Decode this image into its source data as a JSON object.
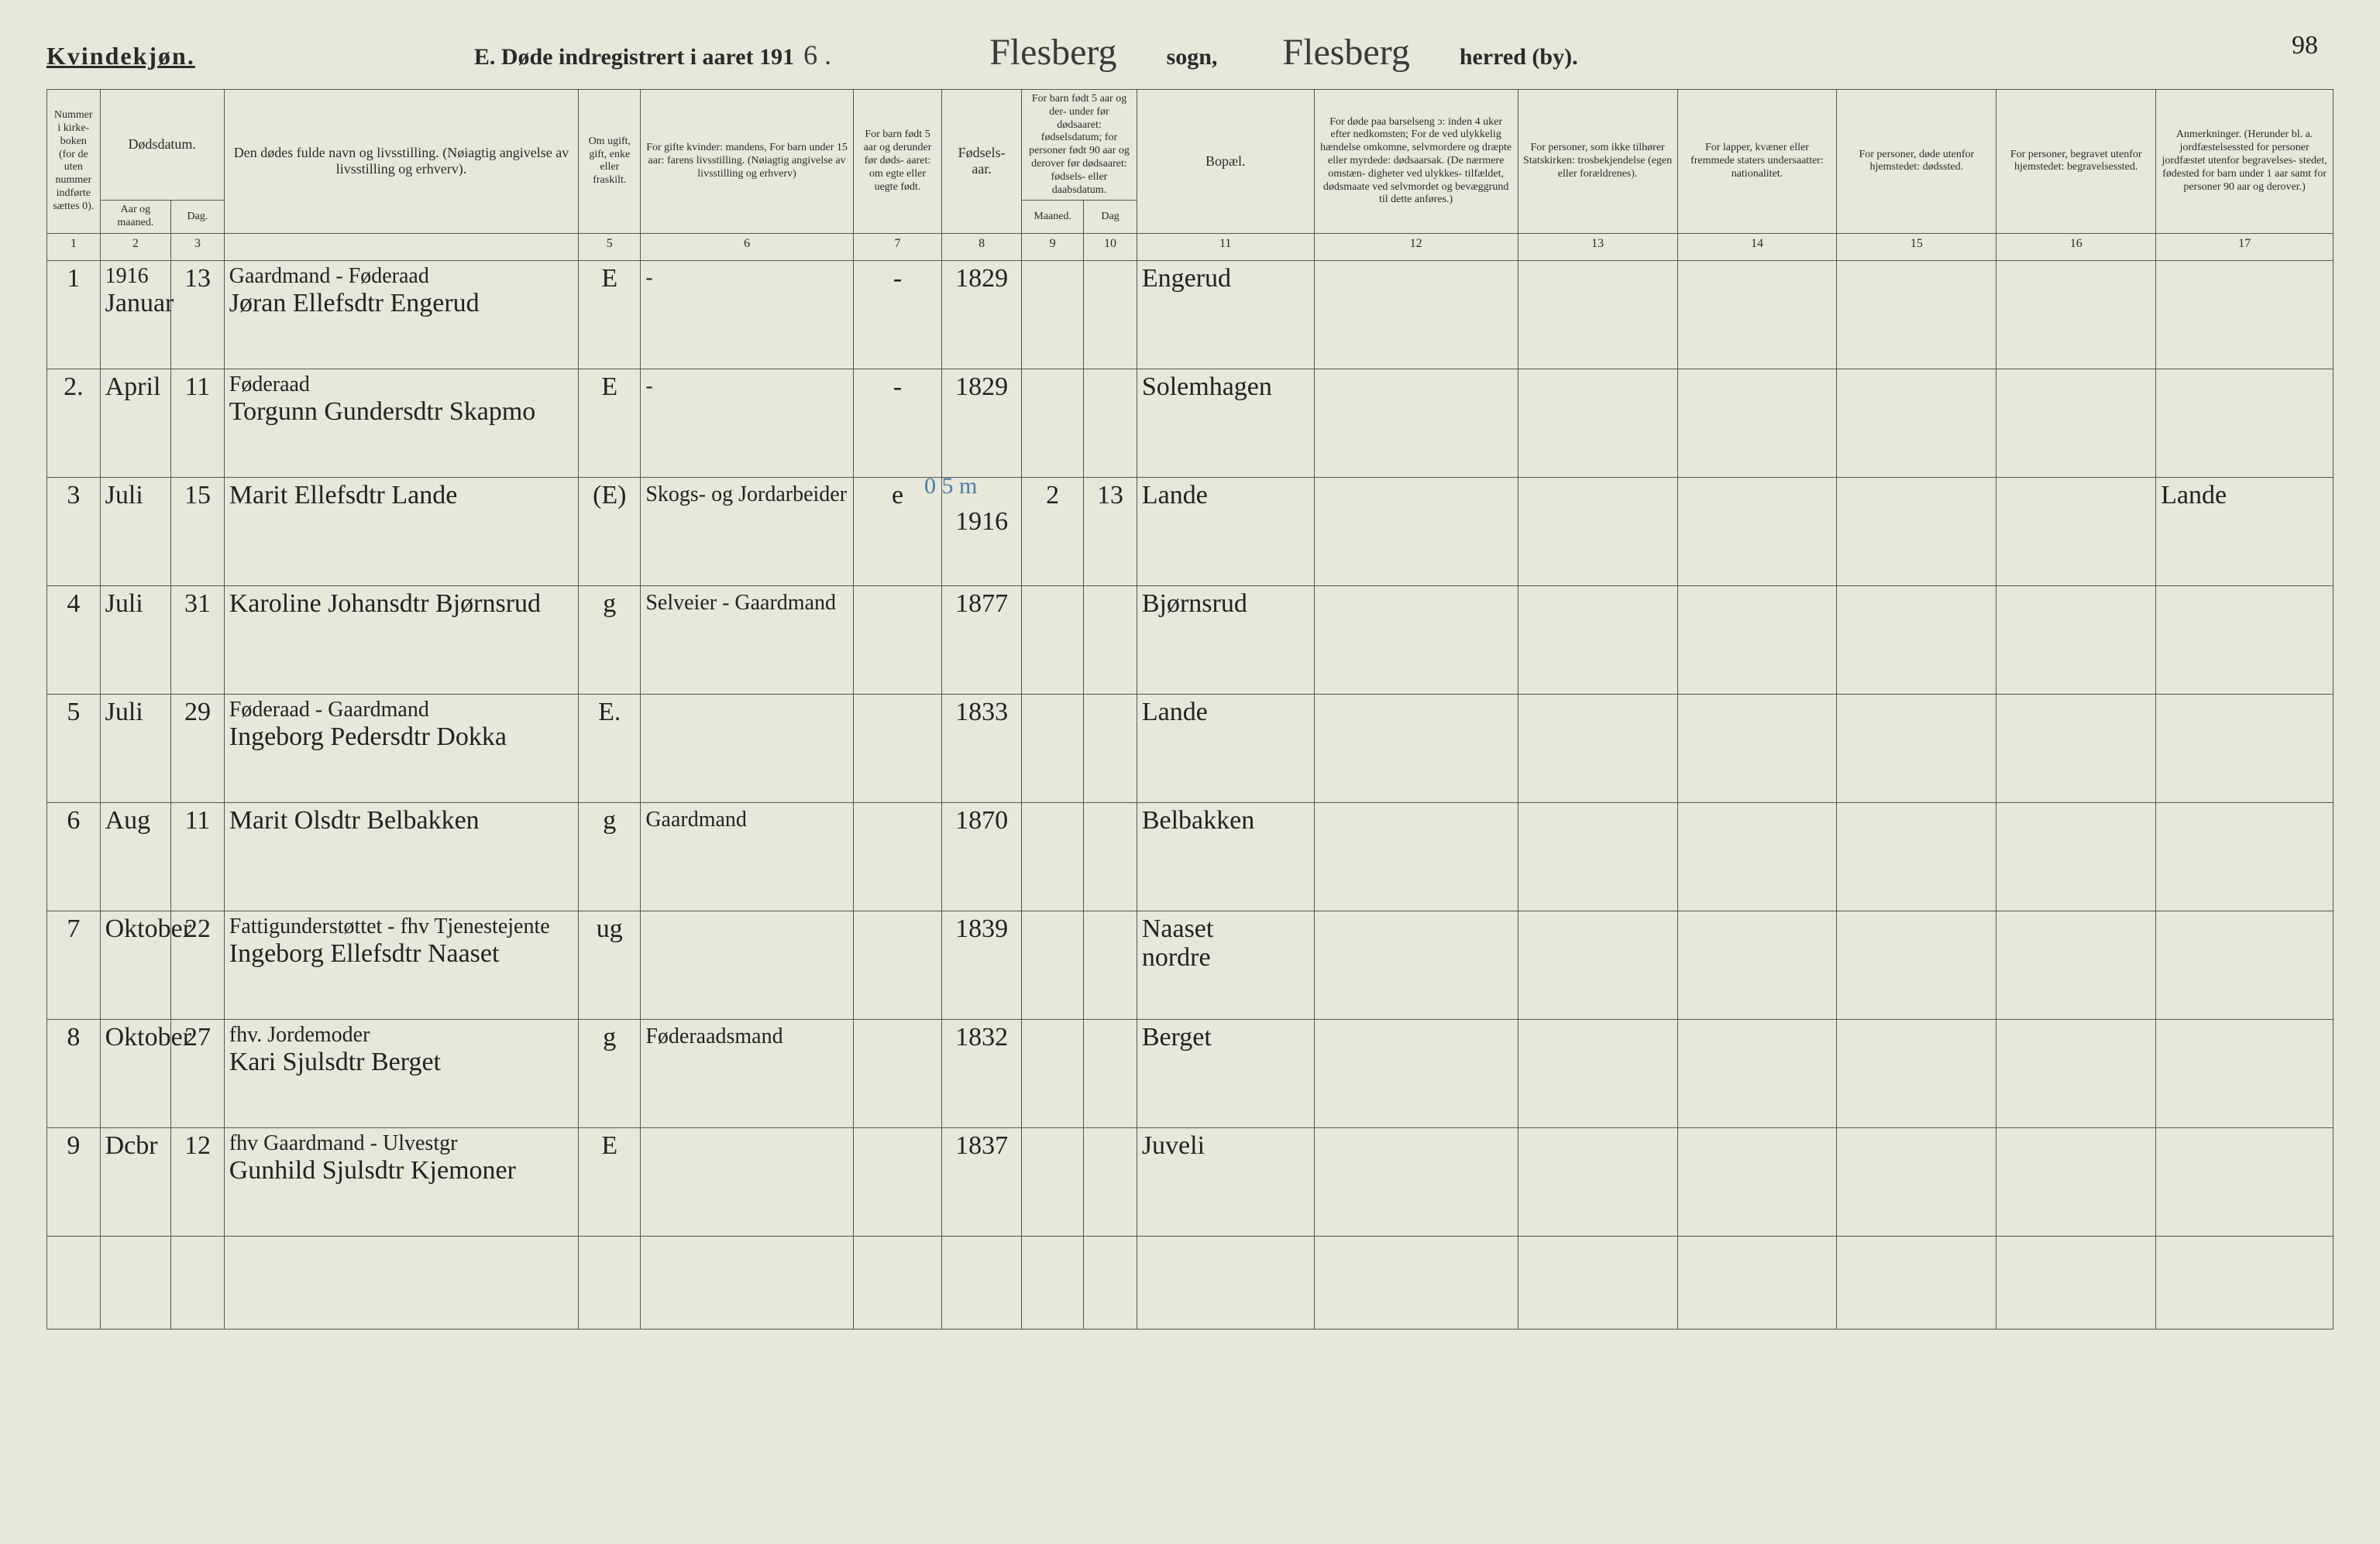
{
  "header": {
    "gender_label": "Kvindekjøn.",
    "title_prefix": "E.  Døde indregistrert i aaret 191",
    "year_suffix": "6 .",
    "parish_label": "sogn,",
    "district_label": "herred (by).",
    "parish_name": "Flesberg",
    "district_name": "Flesberg",
    "page_number": "98"
  },
  "columns": {
    "c1": "Nummer i kirke-\nboken\n(for de\nuten\nnummer\nindførte\nsættes\n0).",
    "c2": "Dødsdatum.",
    "c2a": "Aar\nog\nmaaned.",
    "c2b": "Dag.",
    "c4": "Den dødes fulde navn og livsstilling.\n(Nøiagtig angivelse av livsstilling og erhverv).",
    "c5": "Om\nugift,\ngift,\nenke\neller\nfraskilt.",
    "c6": "For gifte kvinder:\nmandens,\nFor barn under 15 aar:\nfarens livsstilling.\n(Nøiagtig angivelse av\nlivsstilling og erhverv)",
    "c7": "For barn\nfødt\n5 aar og\nderunder\nfør døds-\naaret:\nom egte\neller\nuegte\nfødt.",
    "c8": "Fødsels-\naar.",
    "c9_10": "For barn født\n5 aar og der-\nunder før\ndødsaaret:\nfødselsdatum;\nfor personer\nfødt 90 aar\nog derover før\ndødsaaret:\nfødsels- eller\ndaabsdatum.",
    "c9": "Maaned.",
    "c10": "Dag",
    "c11": "Bopæl.",
    "c12": "For døde paa barselseng\nɔ: inden 4 uker efter\nnedkomsten;\nFor de ved ulykkelig\nhændelse omkomne,\nselvmordere og\ndræpte eller myrdede:\ndødsaarsak.\n(De nærmere omstæn-\ndigheter ved ulykkes-\ntilfældet, dødsmaate ved\nselvmordet og bevæggrund\ntil dette anføres.)",
    "c13": "For personer,\nsom ikke tilhører\nStatskirken:\ntrosbekjendelse\n(egen eller forældrenes).",
    "c14": "For lapper, kvæner\neller fremmede\nstaters undersaatter:\nnationalitet.",
    "c15": "For personer, døde\nutenfor hjemstedet:\ndødssted.",
    "c16": "For personer, begravet\nutenfor hjemstedet:\nbegravelsessted.",
    "c17": "Anmerkninger.\n(Herunder bl. a.\njordfæstelsessted for\npersoner jordfæstet\nutenfor begravelses-\nstedet, fødested for\nbarn under 1 aar\nsamt for personer\n90 aar og derover.)"
  },
  "colnums": [
    "1",
    "2",
    "3",
    "",
    "5",
    "6",
    "7",
    "8",
    "9",
    "10",
    "11",
    "12",
    "13",
    "14",
    "15",
    "16",
    "17"
  ],
  "rows": [
    {
      "num": "1",
      "year_note": "1916",
      "month": "Januar",
      "day": "13",
      "name_top": "Gaardmand - Føderaad",
      "name": "Jøran Ellefsdtr Engerud",
      "status": "E",
      "spouse": "-",
      "legit": "-",
      "birthyear": "1829",
      "b_m": "",
      "b_d": "",
      "residence": "Engerud",
      "remark": ""
    },
    {
      "num": "2.",
      "month": "April",
      "day": "11",
      "name_top": "Føderaad",
      "name": "Torgunn Gundersdtr Skapmo",
      "status": "E",
      "spouse": "-",
      "legit": "-",
      "birthyear": "1829",
      "b_m": "",
      "b_d": "",
      "residence": "Solemhagen",
      "remark": ""
    },
    {
      "num": "3",
      "month": "Juli",
      "day": "15",
      "name_top": "",
      "name": "Marit Ellefsdtr Lande",
      "status": "(E)",
      "spouse": "Skogs- og Jordarbeider",
      "legit": "e",
      "birthyear": "1916",
      "b_m": "2",
      "b_d": "13",
      "blue_note": "0   5 m",
      "residence": "Lande",
      "remark": "Lande"
    },
    {
      "num": "4",
      "month": "Juli",
      "day": "31",
      "name_top": "",
      "name": "Karoline Johansdtr Bjørnsrud",
      "status": "g",
      "spouse": "Selveier - Gaardmand",
      "legit": "",
      "birthyear": "1877",
      "b_m": "",
      "b_d": "",
      "residence": "Bjørnsrud",
      "remark": ""
    },
    {
      "num": "5",
      "month": "Juli",
      "day": "29",
      "name_top": "Føderaad - Gaardmand",
      "name": "Ingeborg Pedersdtr Dokka",
      "status": "E.",
      "spouse": "",
      "legit": "",
      "birthyear": "1833",
      "b_m": "",
      "b_d": "",
      "residence": "Lande",
      "remark": ""
    },
    {
      "num": "6",
      "month": "Aug",
      "day": "11",
      "name_top": "",
      "name": "Marit Olsdtr Belbakken",
      "status": "g",
      "spouse": "Gaardmand",
      "legit": "",
      "birthyear": "1870",
      "b_m": "",
      "b_d": "",
      "residence": "Belbakken",
      "remark": ""
    },
    {
      "num": "7",
      "month": "Oktober",
      "day": "22",
      "name_top": "Fattigunderstøttet - fhv Tjenestejente",
      "name": "Ingeborg Ellefsdtr Naaset",
      "status": "ug",
      "spouse": "",
      "legit": "",
      "birthyear": "1839",
      "b_m": "",
      "b_d": "",
      "residence": "Naaset\nnordre",
      "remark": ""
    },
    {
      "num": "8",
      "month": "Oktober",
      "day": "27",
      "name_top": "fhv. Jordemoder",
      "name": "Kari Sjulsdtr Berget",
      "status": "g",
      "spouse": "Føderaadsmand",
      "legit": "",
      "birthyear": "1832",
      "b_m": "",
      "b_d": "",
      "residence": "Berget",
      "remark": ""
    },
    {
      "num": "9",
      "month": "Dcbr",
      "day": "12",
      "name_top": "fhv Gaardmand - Ulvestgr",
      "name": "Gunhild Sjulsdtr Kjemoner",
      "status": "E",
      "spouse": "",
      "legit": "",
      "birthyear": "1837",
      "b_m": "",
      "b_d": "",
      "residence": "Juveli",
      "remark": ""
    }
  ],
  "colors": {
    "paper": "#e8e8da",
    "ink": "#2a2a2a",
    "rule": "#555555",
    "blue_pencil": "#4a7aa8"
  }
}
